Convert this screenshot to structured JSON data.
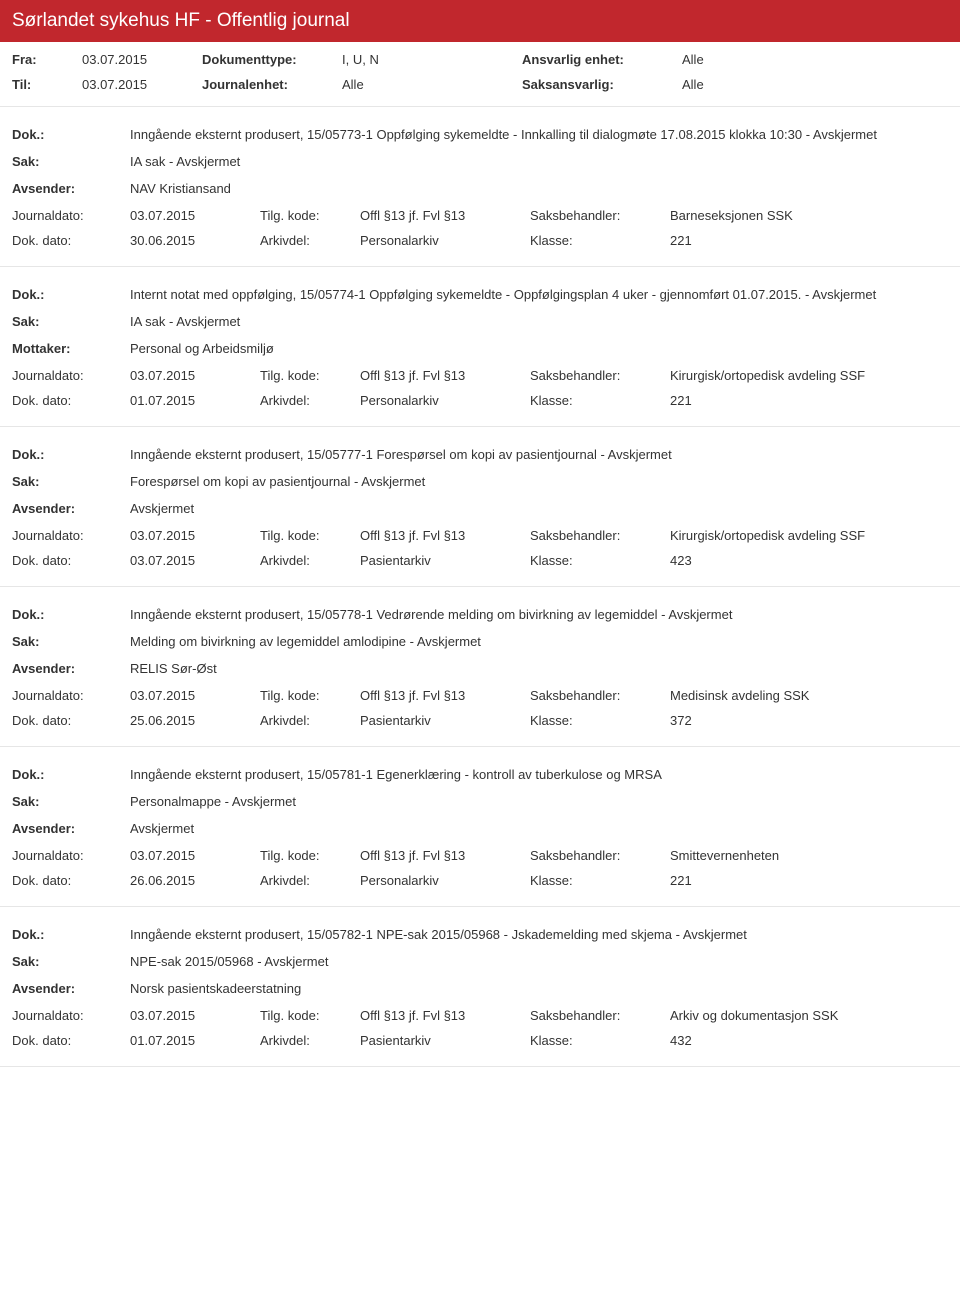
{
  "header": {
    "title": "Sørlandet sykehus HF - Offentlig journal"
  },
  "filters": {
    "row1": {
      "l1": "Fra:",
      "v1": "03.07.2015",
      "l2": "Dokumenttype:",
      "v2": "I, U, N",
      "l3": "Ansvarlig enhet:",
      "v3": "Alle"
    },
    "row2": {
      "l1": "Til:",
      "v1": "03.07.2015",
      "l2": "Journalenhet:",
      "v2": "Alle",
      "l3": "Saksansvarlig:",
      "v3": "Alle"
    }
  },
  "labels": {
    "dok": "Dok.:",
    "sak": "Sak:",
    "avsender": "Avsender:",
    "mottaker": "Mottaker:",
    "journaldato": "Journaldato:",
    "dokdato": "Dok. dato:",
    "tilgkode": "Tilg. kode:",
    "arkivdel": "Arkivdel:",
    "saksbeh": "Saksbehandler:",
    "klasse": "Klasse:"
  },
  "entries": [
    {
      "dok": "Inngående eksternt produsert, 15/05773-1 Oppfølging sykemeldte - Innkalling til dialogmøte 17.08.2015 klokka 10:30 - Avskjermet",
      "sak": "IA sak - Avskjermet",
      "party_label": "Avsender:",
      "party_value": "NAV Kristiansand",
      "journaldato": "03.07.2015",
      "tilgkode": "Offl §13 jf. Fvl §13",
      "saksbeh": "Barneseksjonen SSK",
      "dokdato": "30.06.2015",
      "arkivdel": "Personalarkiv",
      "klasse": "221"
    },
    {
      "dok": "Internt notat med oppfølging, 15/05774-1 Oppfølging sykemeldte - Oppfølgingsplan 4 uker - gjennomført 01.07.2015. - Avskjermet",
      "sak": "IA sak - Avskjermet",
      "party_label": "Mottaker:",
      "party_value": "Personal og Arbeidsmiljø",
      "journaldato": "03.07.2015",
      "tilgkode": "Offl §13 jf. Fvl §13",
      "saksbeh": "Kirurgisk/ortopedisk avdeling SSF",
      "dokdato": "01.07.2015",
      "arkivdel": "Personalarkiv",
      "klasse": "221"
    },
    {
      "dok": "Inngående eksternt produsert, 15/05777-1 Forespørsel om kopi av pasientjournal - Avskjermet",
      "sak": "Forespørsel om kopi av pasientjournal - Avskjermet",
      "party_label": "Avsender:",
      "party_value": "Avskjermet",
      "journaldato": "03.07.2015",
      "tilgkode": "Offl §13 jf. Fvl §13",
      "saksbeh": "Kirurgisk/ortopedisk avdeling SSF",
      "dokdato": "03.07.2015",
      "arkivdel": "Pasientarkiv",
      "klasse": "423"
    },
    {
      "dok": "Inngående eksternt produsert, 15/05778-1 Vedrørende melding om bivirkning av legemiddel - Avskjermet",
      "sak": "Melding om bivirkning av legemiddel amlodipine - Avskjermet",
      "party_label": "Avsender:",
      "party_value": "RELIS Sør-Øst",
      "journaldato": "03.07.2015",
      "tilgkode": "Offl §13 jf. Fvl §13",
      "saksbeh": "Medisinsk avdeling SSK",
      "dokdato": "25.06.2015",
      "arkivdel": "Pasientarkiv",
      "klasse": "372"
    },
    {
      "dok": "Inngående eksternt produsert, 15/05781-1 Egenerklæring - kontroll av tuberkulose og MRSA",
      "sak": "Personalmappe - Avskjermet",
      "party_label": "Avsender:",
      "party_value": "Avskjermet",
      "journaldato": "03.07.2015",
      "tilgkode": "Offl §13 jf. Fvl §13",
      "saksbeh": "Smittevernenheten",
      "dokdato": "26.06.2015",
      "arkivdel": "Personalarkiv",
      "klasse": "221"
    },
    {
      "dok": "Inngående eksternt produsert, 15/05782-1 NPE-sak 2015/05968 - Jskademelding med skjema - Avskjermet",
      "sak": "NPE-sak 2015/05968 - Avskjermet",
      "party_label": "Avsender:",
      "party_value": "Norsk pasientskadeerstatning",
      "journaldato": "03.07.2015",
      "tilgkode": "Offl §13 jf. Fvl §13",
      "saksbeh": "Arkiv og dokumentasjon SSK",
      "dokdato": "01.07.2015",
      "arkivdel": "Pasientarkiv",
      "klasse": "432"
    }
  ]
}
